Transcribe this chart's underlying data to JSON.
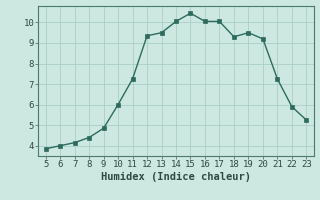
{
  "x": [
    5,
    6,
    7,
    8,
    9,
    10,
    11,
    12,
    13,
    14,
    15,
    16,
    17,
    18,
    19,
    20,
    21,
    22,
    23
  ],
  "y": [
    3.85,
    4.0,
    4.15,
    4.4,
    4.85,
    6.0,
    7.25,
    9.35,
    9.5,
    10.05,
    10.45,
    10.05,
    10.05,
    9.3,
    9.5,
    9.2,
    7.25,
    5.9,
    5.25
  ],
  "line_color": "#2d6b5e",
  "marker_color": "#2d6b5e",
  "bg_color": "#cce8e0",
  "grid_color": "#aacfc8",
  "xlabel": "Humidex (Indice chaleur)",
  "xlim": [
    4.5,
    23.5
  ],
  "ylim": [
    3.5,
    10.8
  ],
  "xticks": [
    5,
    6,
    7,
    8,
    9,
    10,
    11,
    12,
    13,
    14,
    15,
    16,
    17,
    18,
    19,
    20,
    21,
    22,
    23
  ],
  "yticks": [
    4,
    5,
    6,
    7,
    8,
    9,
    10
  ],
  "tick_fontsize": 6.5,
  "xlabel_fontsize": 7.5
}
